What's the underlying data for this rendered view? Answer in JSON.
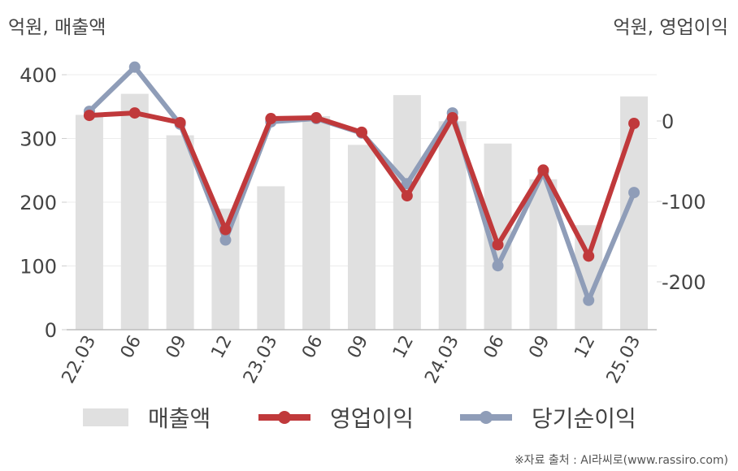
{
  "units": {
    "left": "억원, 매출액",
    "right": "억원, 영업이익"
  },
  "legend": {
    "revenue": "매출액",
    "operating": "영업이익",
    "net": "당기순이익"
  },
  "source": "※자료 출처 : AI라씨로(www.rassiro.com)",
  "colors": {
    "revenue": "#e0e0e0",
    "operating": "#c0393b",
    "net": "#8f9db8"
  },
  "chart_data": {
    "type": "bar",
    "categories": [
      "22.03",
      "06",
      "09",
      "12",
      "23.03",
      "06",
      "09",
      "12",
      "24.03",
      "06",
      "09",
      "12",
      "25.03"
    ],
    "series": [
      {
        "name": "매출액",
        "type": "bar",
        "axis": "left",
        "values": [
          337,
          370,
          305,
          190,
          225,
          335,
          290,
          368,
          327,
          292,
          236,
          164,
          366
        ]
      },
      {
        "name": "영업이익",
        "type": "line",
        "axis": "right",
        "values": [
          7,
          10,
          -2,
          -135,
          3,
          4,
          -14,
          -93,
          4,
          -154,
          -61,
          -168,
          -3
        ]
      },
      {
        "name": "당기순이익",
        "type": "line",
        "axis": "right",
        "values": [
          12,
          67,
          -4,
          -148,
          -1,
          3,
          -15,
          -78,
          10,
          -180,
          -64,
          -223,
          -89
        ]
      }
    ],
    "yleft": {
      "ticks": [
        "0",
        "100",
        "200",
        "300",
        "400"
      ],
      "lim": [
        0,
        400
      ]
    },
    "yright": {
      "ticks": [
        "0",
        "-100",
        "-200"
      ],
      "lim": [
        -260,
        90
      ]
    },
    "grid": true
  }
}
